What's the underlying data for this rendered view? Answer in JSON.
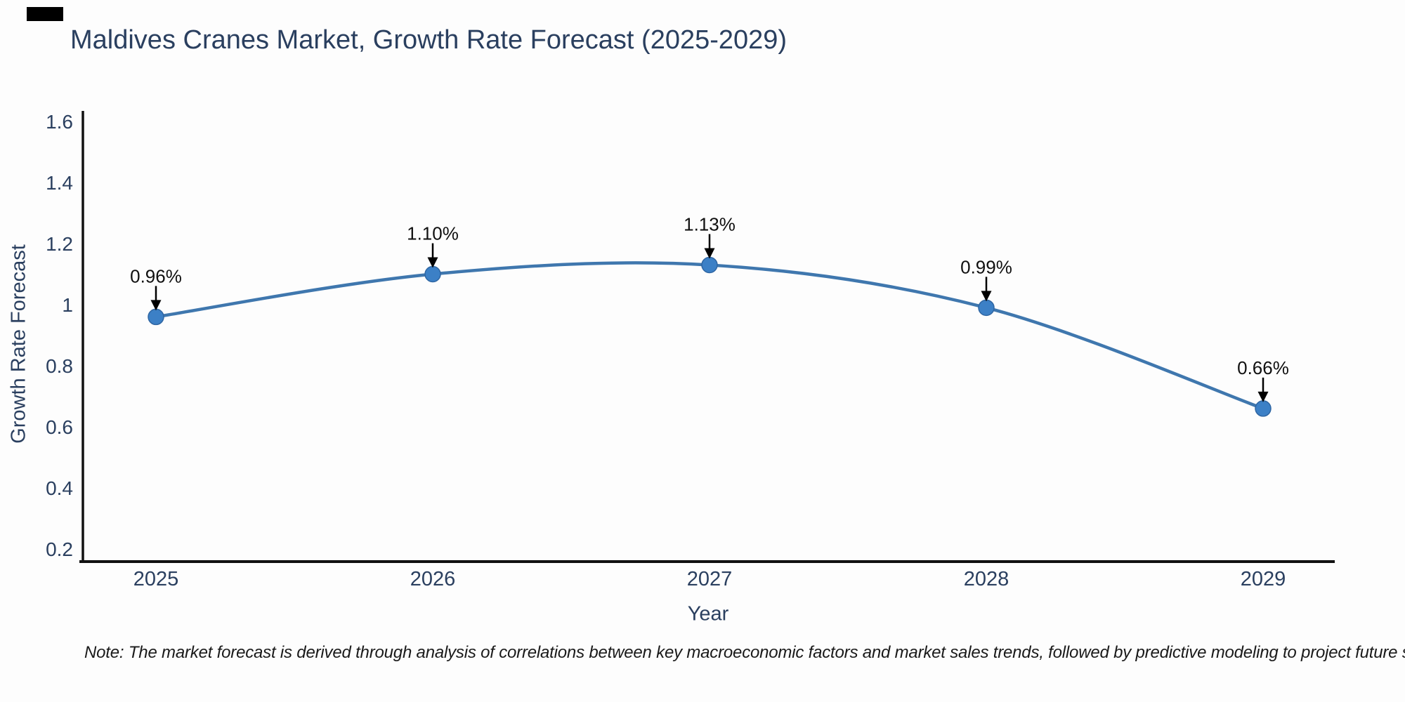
{
  "note": "Note: The market forecast is derived through analysis of correlations between key macroeconomic factors and market sales trends, followed by predictive modeling to project future sales.",
  "chart_data": {
    "type": "line",
    "title": "Maldives Cranes Market, Growth Rate Forecast (2025-2029)",
    "xlabel": "Year",
    "ylabel": "Growth Rate Forecast",
    "categories": [
      "2025",
      "2026",
      "2027",
      "2028",
      "2029"
    ],
    "values": [
      0.96,
      1.1,
      1.13,
      0.99,
      0.66
    ],
    "annotations": [
      "0.96%",
      "1.10%",
      "1.13%",
      "0.99%",
      "0.66%"
    ],
    "y_tick_labels": [
      "0.2",
      "0.4",
      "0.6",
      "0.8",
      "1",
      "1.2",
      "1.4",
      "1.6"
    ],
    "y_tick_values": [
      0.2,
      0.4,
      0.6,
      0.8,
      1.0,
      1.2,
      1.4,
      1.6
    ],
    "ylim": [
      0.15,
      1.63
    ],
    "grid": false,
    "legend": "none",
    "curve": "spline",
    "colors": {
      "line": "#3f77ae",
      "marker_fill": "#3c80c6",
      "marker_stroke": "#2f66a3",
      "axis": "#111111",
      "tick_text": "#2a3f5f",
      "annotation_text": "#101010",
      "arrow": "#000000"
    }
  }
}
